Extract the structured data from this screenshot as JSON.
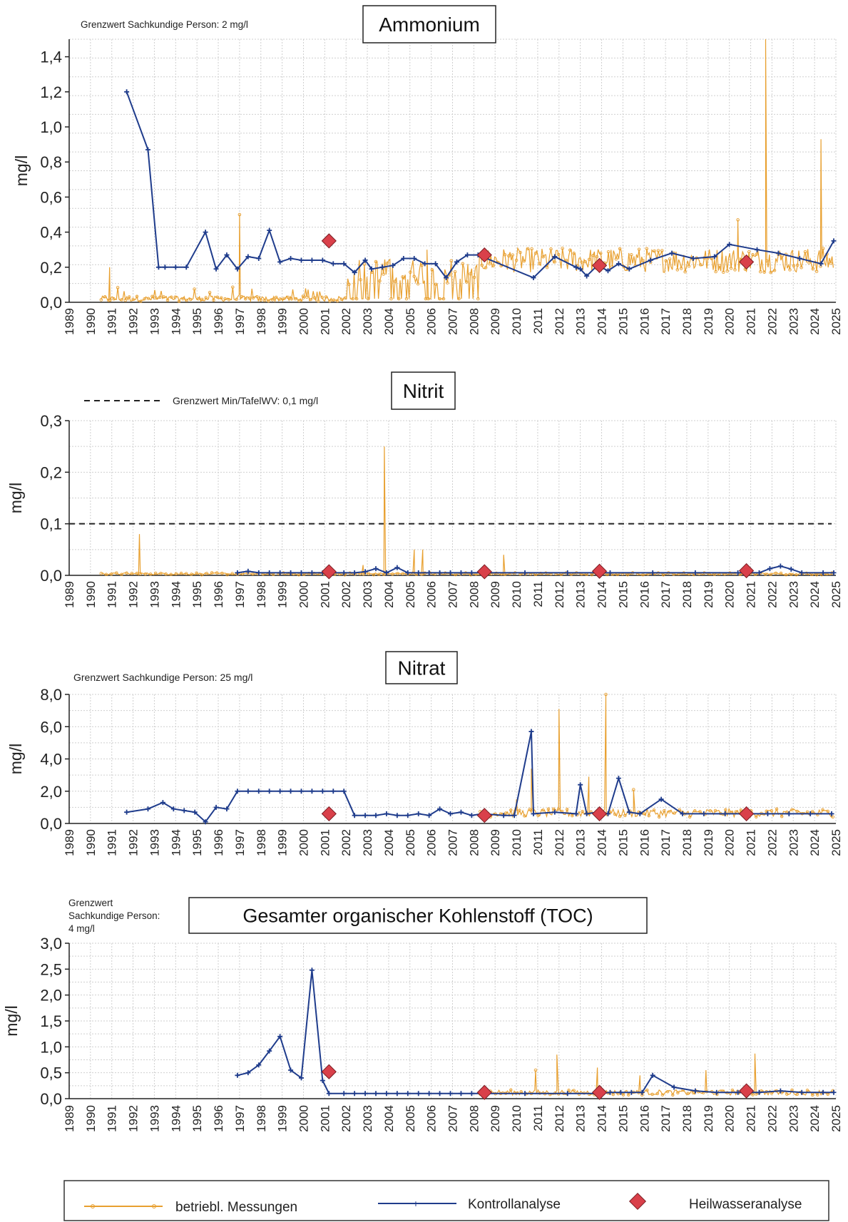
{
  "colors": {
    "betrieb": "#e8a030",
    "kontroll": "#1f3c8c",
    "heil": "#d9404a",
    "grid": "#cfcfcf",
    "limit": "#222222"
  },
  "legend": {
    "betrieb_label": "betriebl. Messungen",
    "kontroll_label": "Kontrollanalyse",
    "heil_label": "Heilwasseranalyse"
  },
  "chart_data": [
    {
      "type": "line",
      "title": "Ammonium",
      "note": "Grenzwert Sachkundige Person: 2 mg/l",
      "ylabel": "mg/l",
      "ylim": [
        0,
        1.5
      ],
      "yticks": [
        0,
        0.2,
        0.4,
        0.6,
        0.8,
        1.0,
        1.2,
        1.4
      ],
      "ytick_labels": [
        "0,0",
        "0,2",
        "0,4",
        "0,6",
        "0,8",
        "1,0",
        "1,2",
        "1,4"
      ],
      "xlim": [
        1989,
        2025
      ],
      "xtick_labels": [
        "1989",
        "1990",
        "1991",
        "1992",
        "1993",
        "1994",
        "1995",
        "1996",
        "1997",
        "1998",
        "1999",
        "2000",
        "2001",
        "2002",
        "2003",
        "2004",
        "2005",
        "2006",
        "2007",
        "2008",
        "2009",
        "2010",
        "2011",
        "2012",
        "2013",
        "2014",
        "2015",
        "2016",
        "2017",
        "2018",
        "2019",
        "2020",
        "2021",
        "2022",
        "2023",
        "2024",
        "2025"
      ],
      "grid": true,
      "series": [
        {
          "name": "Kontrollanalyse",
          "x": [
            1991.7,
            1992.7,
            1993.2,
            1993.5,
            1994,
            1994.5,
            1995.4,
            1995.9,
            1996.4,
            1996.9,
            1997.4,
            1997.9,
            1998.4,
            1998.9,
            1999.4,
            1999.9,
            2000.4,
            2000.9,
            2001.4,
            2001.9,
            2002.4,
            2002.9,
            2003.2,
            2003.7,
            2004.2,
            2004.7,
            2005.2,
            2005.7,
            2006.2,
            2006.7,
            2007.2,
            2007.7,
            2008.2,
            2010.8,
            2011.8,
            2012.8,
            2013.0,
            2013.3,
            2013.8,
            2014.3,
            2014.8,
            2015.3,
            2016.3,
            2017.3,
            2018.3,
            2019.3,
            2020.0,
            2021.3,
            2022.3,
            2023.3,
            2024.3,
            2024.9
          ],
          "y": [
            1.2,
            0.87,
            0.2,
            0.2,
            0.2,
            0.2,
            0.4,
            0.19,
            0.27,
            0.19,
            0.26,
            0.25,
            0.41,
            0.23,
            0.25,
            0.24,
            0.24,
            0.24,
            0.22,
            0.22,
            0.17,
            0.24,
            0.19,
            0.2,
            0.21,
            0.25,
            0.25,
            0.22,
            0.22,
            0.14,
            0.23,
            0.27,
            0.27,
            0.14,
            0.26,
            0.2,
            0.19,
            0.15,
            0.21,
            0.18,
            0.22,
            0.19,
            0.24,
            0.28,
            0.25,
            0.26,
            0.33,
            0.3,
            0.28,
            0.25,
            0.22,
            0.35
          ]
        },
        {
          "name": "Heilwasseranalyse",
          "x": [
            2001.2,
            2008.5,
            2013.9,
            2020.8
          ],
          "y": [
            0.35,
            0.27,
            0.21,
            0.23
          ]
        }
      ]
    },
    {
      "type": "line",
      "title": "Nitrit",
      "note": "Grenzwert Min/TafelWV: 0,1 mg/l",
      "ylabel": "mg/l",
      "ylim": [
        0,
        0.3
      ],
      "yticks": [
        0,
        0.1,
        0.2,
        0.3
      ],
      "ytick_labels": [
        "0,0",
        "0,1",
        "0,2",
        "0,3"
      ],
      "limit_value": 0.1,
      "xlim": [
        1989,
        2025
      ],
      "xtick_labels": [
        "1989",
        "1990",
        "1991",
        "1992",
        "1993",
        "1994",
        "1995",
        "1996",
        "1997",
        "1998",
        "1999",
        "2000",
        "2001",
        "2002",
        "2003",
        "2004",
        "2005",
        "2006",
        "2007",
        "2008",
        "2009",
        "2010",
        "2011",
        "2012",
        "2013",
        "2014",
        "2015",
        "2016",
        "2017",
        "2018",
        "2019",
        "2020",
        "2021",
        "2022",
        "2023",
        "2024",
        "2025"
      ],
      "grid": true,
      "series": [
        {
          "name": "Kontrollanalyse",
          "x": [
            1996.9,
            1997.4,
            1997.9,
            1998.4,
            1998.9,
            1999.4,
            1999.9,
            2000.4,
            2000.9,
            2001.4,
            2001.9,
            2002.4,
            2002.9,
            2003.4,
            2003.9,
            2004.4,
            2004.9,
            2005.4,
            2005.9,
            2006.4,
            2006.9,
            2007.4,
            2007.9,
            2008.4,
            2010.4,
            2012.4,
            2014.4,
            2016.4,
            2018.4,
            2020.4,
            2021.4,
            2021.9,
            2022.4,
            2022.9,
            2023.4,
            2024.4,
            2024.9
          ],
          "y": [
            0.005,
            0.008,
            0.005,
            0.005,
            0.005,
            0.005,
            0.005,
            0.005,
            0.005,
            0.005,
            0.005,
            0.005,
            0.007,
            0.013,
            0.005,
            0.015,
            0.005,
            0.005,
            0.005,
            0.005,
            0.005,
            0.005,
            0.005,
            0.005,
            0.005,
            0.005,
            0.005,
            0.005,
            0.005,
            0.005,
            0.005,
            0.013,
            0.018,
            0.012,
            0.005,
            0.005,
            0.005
          ]
        },
        {
          "name": "Heilwasseranalyse",
          "x": [
            2001.2,
            2008.5,
            2013.9,
            2020.8
          ],
          "y": [
            0.007,
            0.007,
            0.008,
            0.009
          ]
        }
      ]
    },
    {
      "type": "line",
      "title": "Nitrat",
      "note": "Grenzwert Sachkundige Person: 25 mg/l",
      "ylabel": "mg/l",
      "ylim": [
        0,
        8
      ],
      "yticks": [
        0,
        2,
        4,
        6,
        8
      ],
      "ytick_labels": [
        "0,0",
        "2,0",
        "4,0",
        "6,0",
        "8,0"
      ],
      "xlim": [
        1989,
        2025
      ],
      "xtick_labels": [
        "1989",
        "1990",
        "1991",
        "1992",
        "1993",
        "1994",
        "1995",
        "1996",
        "1997",
        "1998",
        "1999",
        "2000",
        "2001",
        "2002",
        "2003",
        "2004",
        "2005",
        "2006",
        "2007",
        "2008",
        "2009",
        "2010",
        "2011",
        "2012",
        "2013",
        "2014",
        "2015",
        "2016",
        "2017",
        "2018",
        "2019",
        "2020",
        "2021",
        "2022",
        "2023",
        "2024",
        "2025"
      ],
      "grid": true,
      "series": [
        {
          "name": "Kontrollanalyse",
          "x": [
            1991.7,
            1992.7,
            1993.4,
            1993.9,
            1994.4,
            1994.9,
            1995.4,
            1995.9,
            1996.4,
            1996.9,
            1997.4,
            1997.9,
            1998.4,
            1998.9,
            1999.4,
            1999.9,
            2000.4,
            2000.9,
            2001.4,
            2001.9,
            2002.4,
            2002.9,
            2003.4,
            2003.9,
            2004.4,
            2004.9,
            2005.4,
            2005.9,
            2006.4,
            2006.9,
            2007.4,
            2007.9,
            2008.4,
            2009.4,
            2009.9,
            2010.7,
            2010.8,
            2011.8,
            2012.8,
            2013.0,
            2013.3,
            2013.8,
            2014.3,
            2014.8,
            2015.3,
            2015.8,
            2016.8,
            2017.8,
            2018.8,
            2019.8,
            2020.8,
            2021.8,
            2022.8,
            2023.8,
            2024.8
          ],
          "y": [
            0.7,
            0.9,
            1.3,
            0.9,
            0.8,
            0.7,
            0.1,
            1.0,
            0.9,
            2.0,
            2.0,
            2.0,
            2.0,
            2.0,
            2.0,
            2.0,
            2.0,
            2.0,
            2.0,
            2.0,
            0.5,
            0.5,
            0.5,
            0.6,
            0.5,
            0.5,
            0.6,
            0.5,
            0.9,
            0.6,
            0.7,
            0.5,
            0.6,
            0.5,
            0.5,
            5.7,
            0.6,
            0.7,
            0.6,
            2.4,
            0.6,
            0.7,
            0.6,
            2.8,
            0.7,
            0.6,
            1.5,
            0.6,
            0.6,
            0.6,
            0.6,
            0.6,
            0.6,
            0.6,
            0.6
          ]
        },
        {
          "name": "Heilwasseranalyse",
          "x": [
            2001.2,
            2008.5,
            2013.9,
            2020.8
          ],
          "y": [
            0.6,
            0.5,
            0.6,
            0.6
          ]
        }
      ]
    },
    {
      "type": "line",
      "title": "Gesamter organischer Kohlenstoff (TOC)",
      "note": "Grenzwert Sachkundige Person: 4 mg/l",
      "ylabel": "mg/l",
      "ylim": [
        0,
        3
      ],
      "yticks": [
        0,
        0.5,
        1.0,
        1.5,
        2.0,
        2.5,
        3.0
      ],
      "ytick_labels": [
        "0,0",
        "0,5",
        "1,0",
        "1,5",
        "2,0",
        "2,5",
        "3,0"
      ],
      "xlim": [
        1989,
        2025
      ],
      "xtick_labels": [
        "1989",
        "1990",
        "1991",
        "1992",
        "1993",
        "1994",
        "1995",
        "1996",
        "1997",
        "1998",
        "1999",
        "2000",
        "2001",
        "2002",
        "2003",
        "2004",
        "2005",
        "2006",
        "2007",
        "2008",
        "2009",
        "2010",
        "2011",
        "2012",
        "2013",
        "2014",
        "2015",
        "2016",
        "2017",
        "2018",
        "2019",
        "2020",
        "2021",
        "2022",
        "2023",
        "2024",
        "2025"
      ],
      "grid": true,
      "series": [
        {
          "name": "Kontrollanalyse",
          "x": [
            1996.9,
            1997.4,
            1997.9,
            1998.4,
            1998.9,
            1999.4,
            1999.9,
            2000.4,
            2000.9,
            2001.2,
            2001.9,
            2002.4,
            2002.9,
            2003.4,
            2003.9,
            2004.4,
            2004.9,
            2005.4,
            2005.9,
            2006.4,
            2006.9,
            2007.4,
            2007.9,
            2008.4,
            2010.4,
            2012.4,
            2013.9,
            2014.4,
            2014.9,
            2015.4,
            2015.9,
            2016.4,
            2017.4,
            2018.4,
            2019.4,
            2020.4,
            2021.4,
            2022.4,
            2023.4,
            2024.4,
            2024.9
          ],
          "y": [
            0.45,
            0.5,
            0.65,
            0.92,
            1.2,
            0.55,
            0.4,
            2.48,
            0.35,
            0.1,
            0.1,
            0.1,
            0.1,
            0.1,
            0.1,
            0.1,
            0.1,
            0.1,
            0.1,
            0.1,
            0.1,
            0.1,
            0.1,
            0.1,
            0.1,
            0.1,
            0.1,
            0.12,
            0.12,
            0.12,
            0.12,
            0.45,
            0.22,
            0.15,
            0.12,
            0.12,
            0.12,
            0.15,
            0.12,
            0.12,
            0.12
          ]
        },
        {
          "name": "Heilwasseranalyse",
          "x": [
            2001.2,
            2008.5,
            2013.9,
            2020.8
          ],
          "y": [
            0.52,
            0.12,
            0.12,
            0.15
          ]
        }
      ]
    }
  ]
}
